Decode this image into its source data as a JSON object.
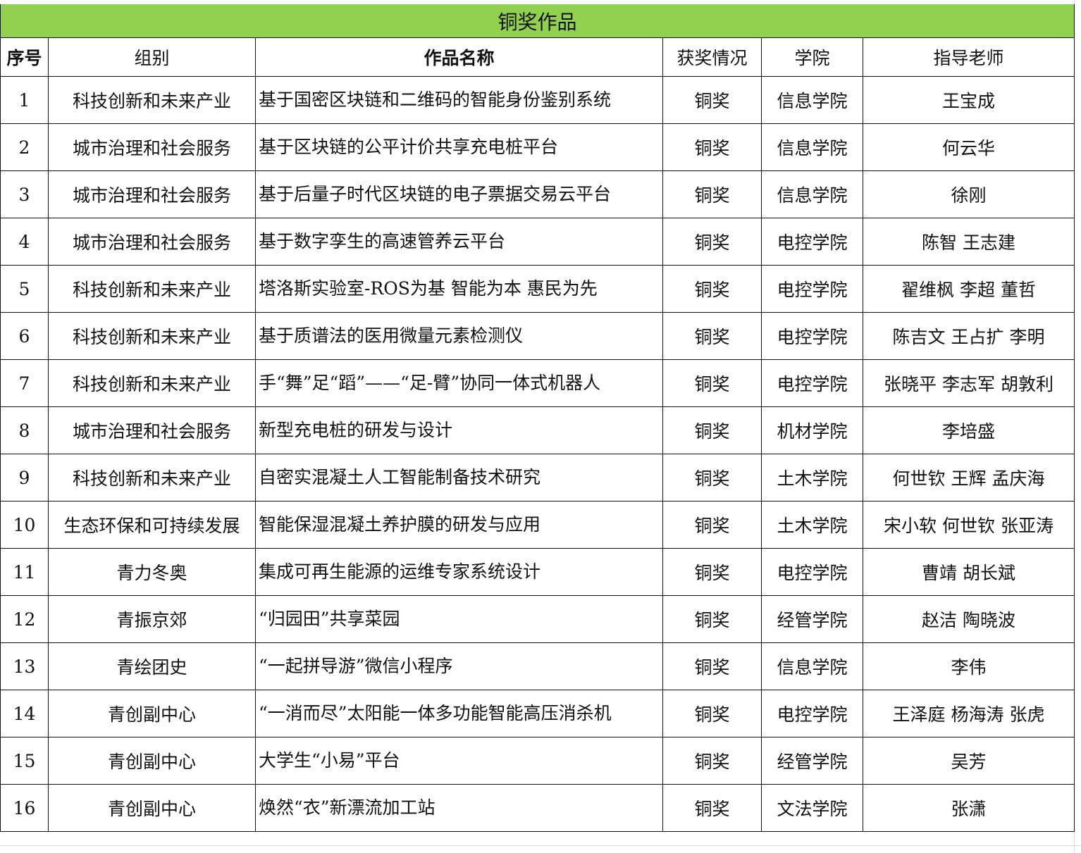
{
  "title": "铜奖作品",
  "headers": {
    "index": "序号",
    "group": "组别",
    "work": "作品名称",
    "award": "获奖情况",
    "college": "学院",
    "advisor": "指导老师"
  },
  "colors": {
    "title_bg": "#92d050",
    "border": "#111111"
  },
  "rows": [
    {
      "index": "1",
      "group": "科技创新和未来产业",
      "work": "基于国密区块链和二维码的智能身份鉴别系统",
      "award": "铜奖",
      "college": "信息学院",
      "advisor": "王宝成"
    },
    {
      "index": "2",
      "group": "城市治理和社会服务",
      "work": "基于区块链的公平计价共享充电桩平台",
      "award": "铜奖",
      "college": "信息学院",
      "advisor": "何云华"
    },
    {
      "index": "3",
      "group": "城市治理和社会服务",
      "work": "基于后量子时代区块链的电子票据交易云平台",
      "award": "铜奖",
      "college": "信息学院",
      "advisor": "徐刚"
    },
    {
      "index": "4",
      "group": "城市治理和社会服务",
      "work": "基于数字孪生的高速管养云平台",
      "award": "铜奖",
      "college": "电控学院",
      "advisor": "陈智 王志建"
    },
    {
      "index": "5",
      "group": "科技创新和未来产业",
      "work": "塔洛斯实验室-ROS为基 智能为本 惠民为先",
      "award": "铜奖",
      "college": "电控学院",
      "advisor": "翟维枫 李超 董哲"
    },
    {
      "index": "6",
      "group": "科技创新和未来产业",
      "work": "基于质谱法的医用微量元素检测仪",
      "award": "铜奖",
      "college": "电控学院",
      "advisor": "陈吉文 王占扩 李明"
    },
    {
      "index": "7",
      "group": "科技创新和未来产业",
      "work": "手“舞”足“蹈”——“足-臂”协同一体式机器人",
      "award": "铜奖",
      "college": "电控学院",
      "advisor": "张晓平 李志军 胡敦利"
    },
    {
      "index": "8",
      "group": "城市治理和社会服务",
      "work": "新型充电桩的研发与设计",
      "award": "铜奖",
      "college": "机材学院",
      "advisor": "李培盛"
    },
    {
      "index": "9",
      "group": "科技创新和未来产业",
      "work": "自密实混凝土人工智能制备技术研究",
      "award": "铜奖",
      "college": "土木学院",
      "advisor": "何世钦 王辉 孟庆海"
    },
    {
      "index": "10",
      "group": "生态环保和可持续发展",
      "work": "智能保湿混凝土养护膜的研发与应用",
      "award": "铜奖",
      "college": "土木学院",
      "advisor": "宋小软 何世钦 张亚涛"
    },
    {
      "index": "11",
      "group": "青力冬奥",
      "work": "集成可再生能源的运维专家系统设计",
      "award": "铜奖",
      "college": "电控学院",
      "advisor": "曹靖 胡长斌"
    },
    {
      "index": "12",
      "group": "青振京郊",
      "work": "“归园田”共享菜园",
      "award": "铜奖",
      "college": "经管学院",
      "advisor": "赵洁 陶晓波"
    },
    {
      "index": "13",
      "group": "青绘团史",
      "work": "“一起拼导游”微信小程序",
      "award": "铜奖",
      "college": "信息学院",
      "advisor": "李伟"
    },
    {
      "index": "14",
      "group": "青创副中心",
      "work": "“一消而尽”太阳能一体多功能智能高压消杀机",
      "award": "铜奖",
      "college": "电控学院",
      "advisor": "王泽庭 杨海涛 张虎"
    },
    {
      "index": "15",
      "group": "青创副中心",
      "work": "大学生“小易”平台",
      "award": "铜奖",
      "college": "经管学院",
      "advisor": "吴芳"
    },
    {
      "index": "16",
      "group": "青创副中心",
      "work": "焕然“衣”新漂流加工站",
      "award": "铜奖",
      "college": "文法学院",
      "advisor": "张潇"
    }
  ]
}
